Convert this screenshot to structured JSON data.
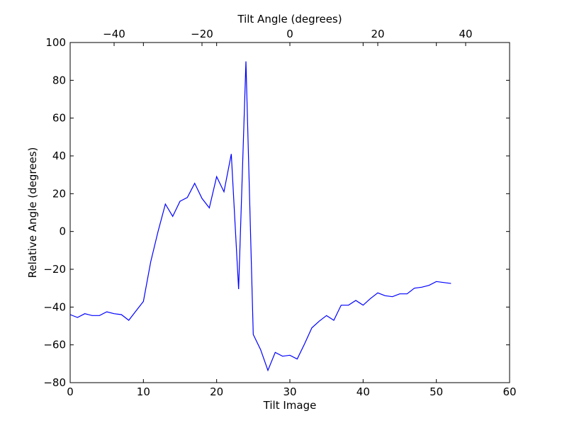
{
  "chart_data": {
    "type": "line",
    "title": "",
    "xlabel": "Tilt Image",
    "ylabel": "Relative Angle (degrees)",
    "top_xlabel": "Tilt Angle (degrees)",
    "xlim": [
      0,
      60
    ],
    "ylim": [
      -80,
      100
    ],
    "top_xlim": [
      -50,
      50
    ],
    "x_ticks": [
      0,
      10,
      20,
      30,
      40,
      50,
      60
    ],
    "x_tick_labels": [
      "0",
      "10",
      "20",
      "30",
      "40",
      "50",
      "60"
    ],
    "y_ticks": [
      -80,
      -60,
      -40,
      -20,
      0,
      20,
      40,
      60,
      80,
      100
    ],
    "y_tick_labels": [
      "−80",
      "−60",
      "−40",
      "−20",
      "0",
      "20",
      "40",
      "60",
      "80",
      "100"
    ],
    "top_x_ticks": [
      -40,
      -20,
      0,
      20,
      40
    ],
    "top_x_tick_labels": [
      "−40",
      "−20",
      "0",
      "20",
      "40"
    ],
    "grid": false,
    "series_color": "#0000ff",
    "series": [
      {
        "x": [
          0,
          1,
          2,
          3,
          4,
          5,
          6,
          7,
          8,
          9,
          10,
          11,
          12,
          13,
          14,
          15,
          16,
          17,
          18,
          19,
          20,
          21,
          22,
          23,
          24,
          25,
          26,
          27,
          28,
          29,
          30,
          31,
          32,
          33,
          34,
          35,
          36,
          37,
          38,
          39,
          40,
          41,
          42,
          43,
          44,
          45,
          46,
          47,
          48,
          49,
          50,
          51,
          52
        ],
        "values": [
          -44,
          -45.5,
          -43.5,
          -44.5,
          -44.5,
          -42.5,
          -43.5,
          -44,
          -47,
          -42,
          -37,
          -16,
          0,
          14.5,
          8,
          16,
          18,
          25.5,
          17.5,
          12.5,
          29,
          21,
          41,
          -30.5,
          90,
          -54.5,
          -62.5,
          -73.5,
          -64,
          -66,
          -65.5,
          -67.5,
          -59.5,
          -51,
          -47.5,
          -44.5,
          -47,
          -39,
          -39,
          -36.5,
          -39,
          -35.5,
          -32.5,
          -34,
          -34.5,
          -33,
          -33,
          -30,
          -29.5,
          -28.5,
          -26.5,
          -27,
          -27.5
        ]
      }
    ]
  }
}
